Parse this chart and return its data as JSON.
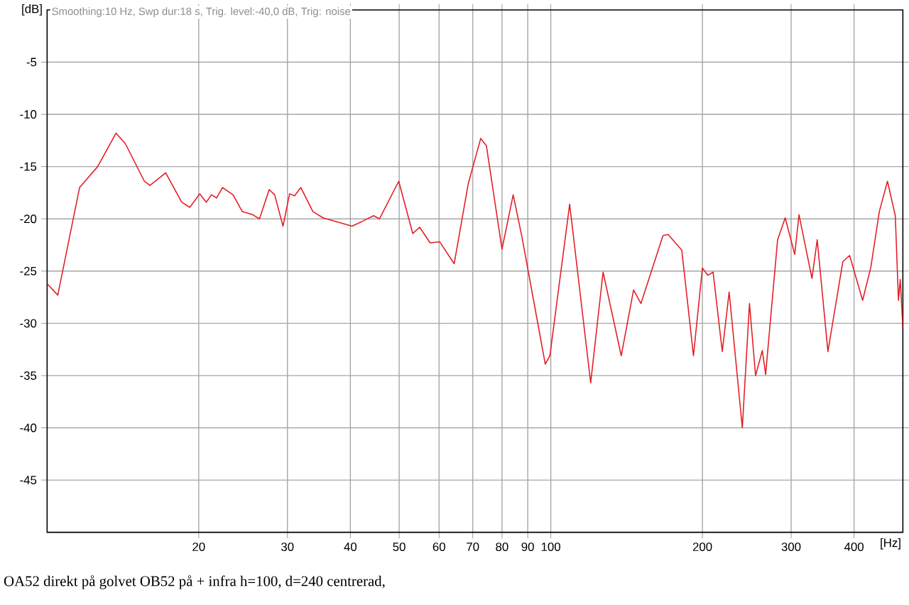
{
  "chart_data": {
    "type": "line",
    "xlabel": "[Hz]",
    "ylabel": "[dB]",
    "annotations": [
      "Smoothing:10 Hz, Swp dur:18 s, Trig. level:-40,0 dB, Trig: noise",
      "OA52 direkt på golvet  OB52 på + infra    h=100, d=240 centrerad,"
    ],
    "log": "x",
    "grid": true,
    "xlim": [
      10,
      500
    ],
    "ylim": [
      -50,
      0
    ],
    "xticks": [
      20,
      30,
      40,
      50,
      60,
      70,
      80,
      90,
      100,
      200,
      300,
      400
    ],
    "yticks": [
      -45,
      -40,
      -35,
      -30,
      -25,
      -20,
      -15,
      -10,
      -5
    ],
    "series": [
      {
        "color": "#e41e26",
        "x": [
          10,
          10.5,
          11.6,
          12.6,
          13.7,
          14.3,
          15.6,
          16.0,
          17.2,
          18.5,
          19.2,
          20.1,
          20.7,
          21.2,
          21.7,
          22.3,
          23.4,
          24.4,
          25.6,
          26.4,
          27.6,
          28.3,
          29.4,
          30.3,
          31,
          31.9,
          33.7,
          35.3,
          40.3,
          42.4,
          44.5,
          45.7,
          49.9,
          53.2,
          54.9,
          57.6,
          60.2,
          64.3,
          68.6,
          72.6,
          74.5,
          80.0,
          84.2,
          87.7,
          97.5,
          99.6,
          109,
          120,
          127,
          138,
          146,
          151,
          167,
          171,
          182,
          192,
          200,
          205,
          210,
          219,
          226,
          240,
          248,
          255,
          263,
          267,
          282,
          292,
          305,
          311,
          330,
          338,
          355,
          380,
          392,
          416,
          432,
          449,
          466,
          483,
          490,
          494,
          500
        ],
        "values": [
          -26.2,
          -27.3,
          -17.0,
          -15.0,
          -11.8,
          -12.8,
          -16.4,
          -16.8,
          -15.6,
          -18.4,
          -18.9,
          -17.6,
          -18.4,
          -17.7,
          -18.0,
          -17.0,
          -17.7,
          -19.3,
          -19.6,
          -20.0,
          -17.2,
          -17.7,
          -20.7,
          -17.6,
          -17.8,
          -17.0,
          -19.3,
          -19.9,
          -20.7,
          -20.2,
          -19.7,
          -20.0,
          -16.4,
          -21.4,
          -20.8,
          -22.3,
          -22.2,
          -24.3,
          -16.6,
          -12.3,
          -13.0,
          -22.9,
          -17.7,
          -21.8,
          -33.9,
          -33.1,
          -18.6,
          -35.7,
          -25.1,
          -33.1,
          -26.8,
          -28.1,
          -21.6,
          -21.5,
          -23.0,
          -33.1,
          -24.7,
          -25.4,
          -25.1,
          -32.7,
          -27.0,
          -40.0,
          -28.1,
          -35.0,
          -32.6,
          -34.9,
          -22.0,
          -19.9,
          -23.4,
          -19.6,
          -25.7,
          -22.0,
          -32.7,
          -24.1,
          -23.5,
          -27.8,
          -24.6,
          -19.3,
          -16.4,
          -19.7,
          -27.8,
          -25.8,
          -30.4
        ]
      }
    ]
  }
}
